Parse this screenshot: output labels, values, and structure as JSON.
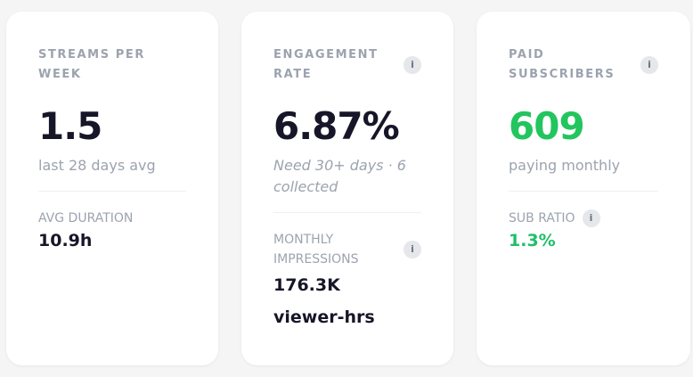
{
  "cards": [
    {
      "label": "STREAMS PER WEEK",
      "value": "1.5",
      "sub": "last 28 days avg",
      "secondary_label": "AVG DURATION",
      "secondary_value": "10.9h"
    },
    {
      "label": "ENGAGEMENT RATE",
      "value": "6.87%",
      "sub": "Need 30+ days · 6 collected",
      "secondary_label": "MONTHLY IMPRESSIONS",
      "secondary_value": "176.3K",
      "secondary_value2": "viewer-hrs"
    },
    {
      "label": "PAID SUBSCRIBERS",
      "value": "609",
      "sub": "paying monthly",
      "secondary_label": "SUB RATIO",
      "secondary_value": "1.3%"
    }
  ],
  "info_glyph": "i",
  "colors": {
    "accent_green": "#22c55e",
    "text_dark": "#161628",
    "muted": "#9ca3af"
  }
}
